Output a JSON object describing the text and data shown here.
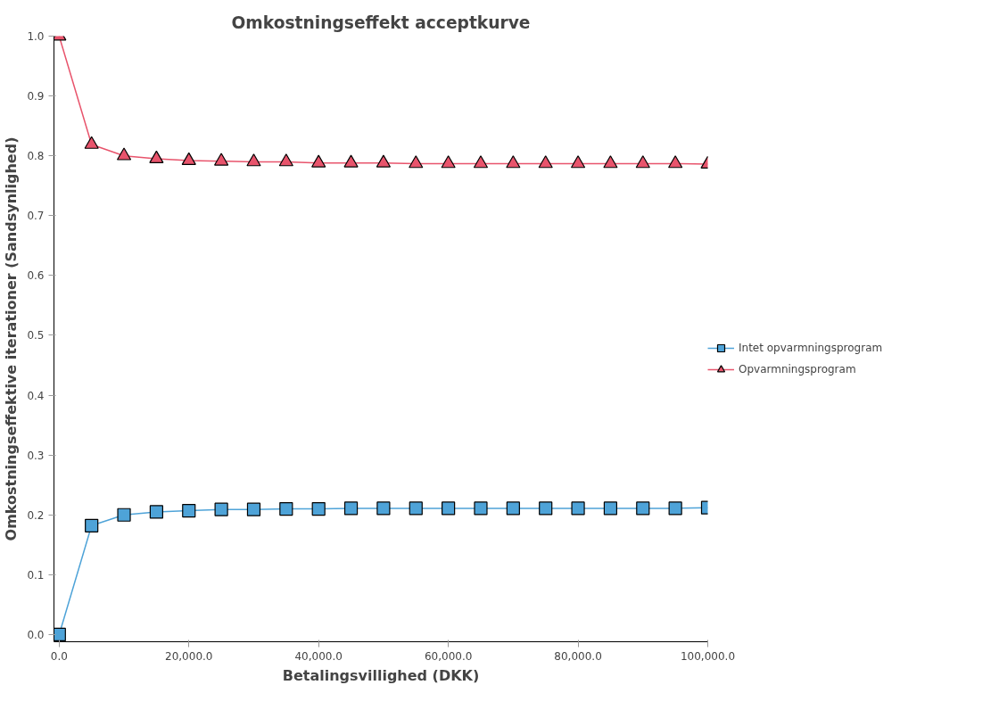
{
  "chart_data": {
    "type": "line",
    "title": "Omkostningseffekt acceptkurve",
    "xlabel": "Betalingsvillighed (DKK)",
    "ylabel": "Omkostningseffektive iterationer (Sandsynlighed)",
    "x": [
      0,
      5000,
      10000,
      15000,
      20000,
      25000,
      30000,
      35000,
      40000,
      45000,
      50000,
      55000,
      60000,
      65000,
      70000,
      75000,
      80000,
      85000,
      90000,
      95000,
      100000
    ],
    "series": [
      {
        "name": "Intet opvarmningsprogram",
        "color": "#4ea3d8",
        "marker": "square",
        "values": [
          0,
          0.182,
          0.2,
          0.205,
          0.207,
          0.209,
          0.209,
          0.21,
          0.21,
          0.211,
          0.211,
          0.211,
          0.211,
          0.211,
          0.211,
          0.211,
          0.211,
          0.211,
          0.211,
          0.211,
          0.212
        ]
      },
      {
        "name": "Opvarmningsprogram",
        "color": "#e8546c",
        "marker": "triangle",
        "values": [
          1.0,
          0.819,
          0.8,
          0.795,
          0.792,
          0.791,
          0.79,
          0.79,
          0.788,
          0.788,
          0.788,
          0.787,
          0.787,
          0.787,
          0.787,
          0.787,
          0.787,
          0.787,
          0.787,
          0.787,
          0.786
        ]
      }
    ],
    "xlim": [
      -800,
      100000
    ],
    "ylim": [
      -0.012,
      1.0
    ],
    "xticks": [
      {
        "value": 0,
        "label": "0.0"
      },
      {
        "value": 20000,
        "label": "20,000.0"
      },
      {
        "value": 40000,
        "label": "40,000.0"
      },
      {
        "value": 60000,
        "label": "60,000.0"
      },
      {
        "value": 80000,
        "label": "80,000.0"
      },
      {
        "value": 100000,
        "label": "100,000.0"
      }
    ],
    "yticks": [
      {
        "value": 0,
        "label": "0.0"
      },
      {
        "value": 0.1,
        "label": "0.1"
      },
      {
        "value": 0.2,
        "label": "0.2"
      },
      {
        "value": 0.3,
        "label": "0.3"
      },
      {
        "value": 0.4,
        "label": "0.4"
      },
      {
        "value": 0.5,
        "label": "0.5"
      },
      {
        "value": 0.6,
        "label": "0.6"
      },
      {
        "value": 0.7,
        "label": "0.7"
      },
      {
        "value": 0.8,
        "label": "0.8"
      },
      {
        "value": 0.9,
        "label": "0.9"
      },
      {
        "value": 1.0,
        "label": "1.0"
      }
    ],
    "grid": false,
    "legend": "right",
    "line_style": "solid"
  }
}
